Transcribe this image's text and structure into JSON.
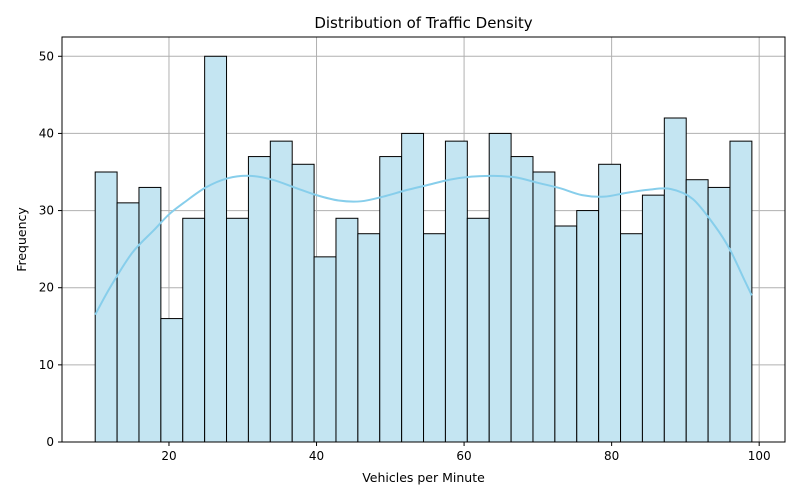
{
  "chart_data": {
    "type": "bar",
    "title": "Distribution of Traffic Density",
    "xlabel": "Vehicles per Minute",
    "ylabel": "Frequency",
    "xlim": [
      5.5,
      103.5
    ],
    "ylim": [
      0,
      52.5
    ],
    "xticks": [
      20,
      40,
      60,
      80,
      100
    ],
    "yticks": [
      0,
      10,
      20,
      30,
      40,
      50
    ],
    "grid": true,
    "bin_start": 10,
    "bin_width": 2.967,
    "values": [
      35,
      31,
      33,
      16,
      29,
      50,
      29,
      37,
      39,
      36,
      24,
      29,
      27,
      37,
      40,
      27,
      39,
      29,
      40,
      37,
      35,
      28,
      30,
      36,
      27,
      32,
      42,
      34,
      33,
      39
    ],
    "kde": {
      "x": [
        10,
        12,
        15,
        18,
        20,
        22,
        25,
        28,
        31,
        34,
        37,
        40,
        43,
        46,
        49,
        52,
        55,
        58,
        61,
        64,
        67,
        70,
        73,
        76,
        79,
        82,
        85,
        88,
        91,
        94,
        96,
        98,
        99
      ],
      "y": [
        16.5,
        20,
        24.5,
        27.5,
        29.5,
        31,
        33,
        34.2,
        34.5,
        34,
        33,
        32,
        31.3,
        31.2,
        31.8,
        32.6,
        33.3,
        34,
        34.4,
        34.5,
        34.3,
        33.6,
        32.9,
        32,
        31.8,
        32.3,
        32.7,
        32.8,
        31.5,
        28,
        25,
        21,
        19
      ]
    },
    "colors": {
      "bar_fill": "#c4e5f2",
      "bar_edge": "#000000",
      "kde": "#87ceeb",
      "grid": "#b0b0b0"
    }
  }
}
